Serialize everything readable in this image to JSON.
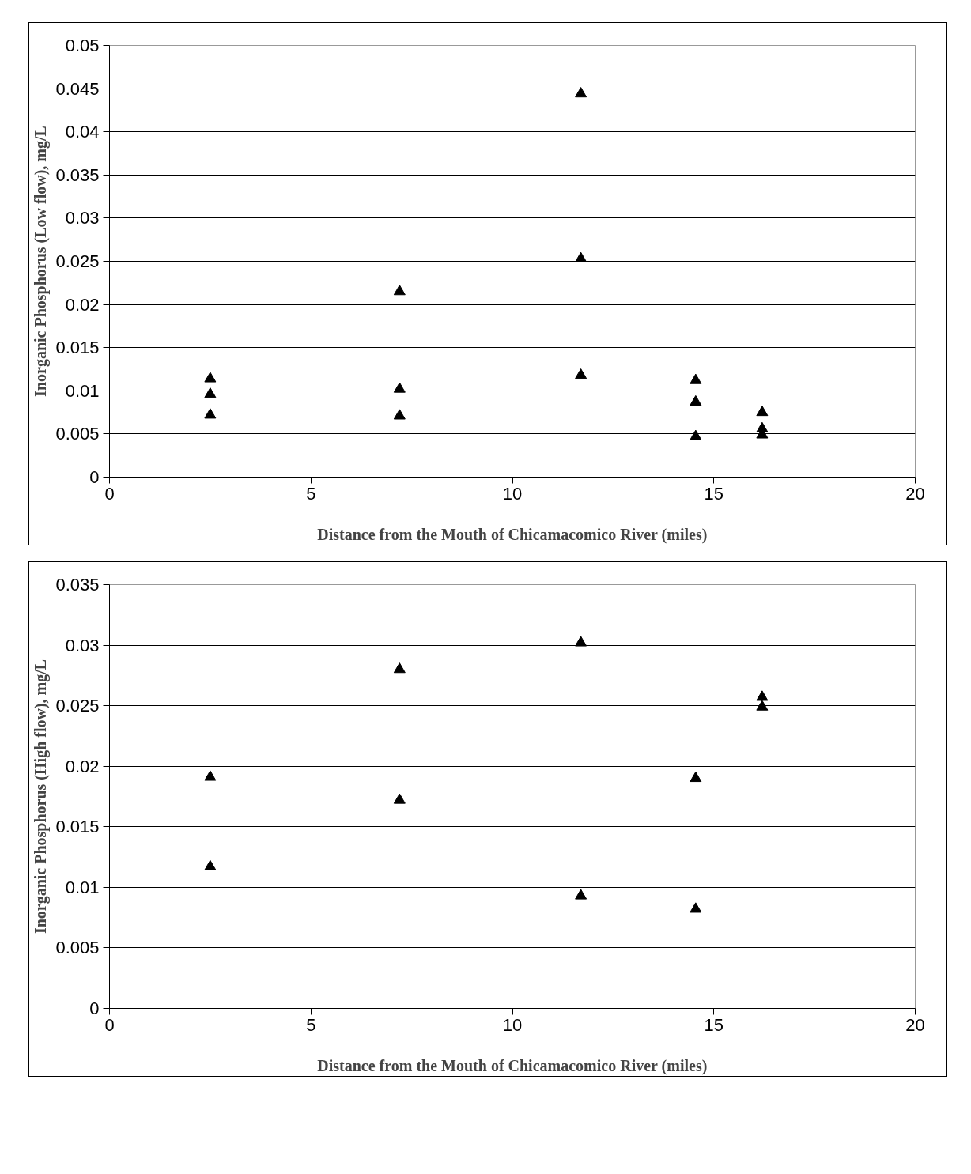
{
  "chart_data": [
    {
      "type": "scatter",
      "xlabel": "Distance from the Mouth of Chicamacomico River (miles)",
      "ylabel": "Inorganic Phosphorus (Low flow), mg/L",
      "marker": "triangle",
      "grid": "y",
      "xlim": [
        0,
        20
      ],
      "xticks": [
        0,
        5,
        10,
        15,
        20
      ],
      "ylim": [
        0,
        0.05
      ],
      "yticks": [
        0,
        0.005,
        0.01,
        0.015,
        0.02,
        0.025,
        0.03,
        0.035,
        0.04,
        0.045,
        0.05
      ],
      "series": [
        {
          "color": "#000000",
          "x": [
            2.5,
            2.5,
            2.5,
            7.2,
            7.2,
            7.2,
            11.7,
            11.7,
            11.7,
            14.55,
            14.55,
            14.55,
            16.2,
            16.2,
            16.2
          ],
          "values": [
            0.0114,
            0.0096,
            0.0072,
            0.0215,
            0.0102,
            0.0071,
            0.0444,
            0.0253,
            0.0118,
            0.0112,
            0.0087,
            0.0047,
            0.0075,
            0.0056,
            0.0049
          ]
        }
      ]
    },
    {
      "type": "scatter",
      "xlabel": "Distance from the Mouth of Chicamacomico River (miles)",
      "ylabel": "Inorganic Phosphorus (High flow), mg/L",
      "marker": "triangle",
      "grid": "y",
      "xlim": [
        0,
        20
      ],
      "xticks": [
        0,
        5,
        10,
        15,
        20
      ],
      "ylim": [
        0,
        0.035
      ],
      "yticks": [
        0,
        0.005,
        0.01,
        0.015,
        0.02,
        0.025,
        0.03,
        0.035
      ],
      "series": [
        {
          "color": "#000000",
          "x": [
            2.5,
            2.5,
            7.2,
            7.2,
            11.7,
            11.7,
            14.55,
            14.55,
            16.2,
            16.2
          ],
          "values": [
            0.0191,
            0.0117,
            0.028,
            0.0172,
            0.0302,
            0.0093,
            0.019,
            0.0082,
            0.0257,
            0.0249
          ]
        }
      ]
    }
  ]
}
